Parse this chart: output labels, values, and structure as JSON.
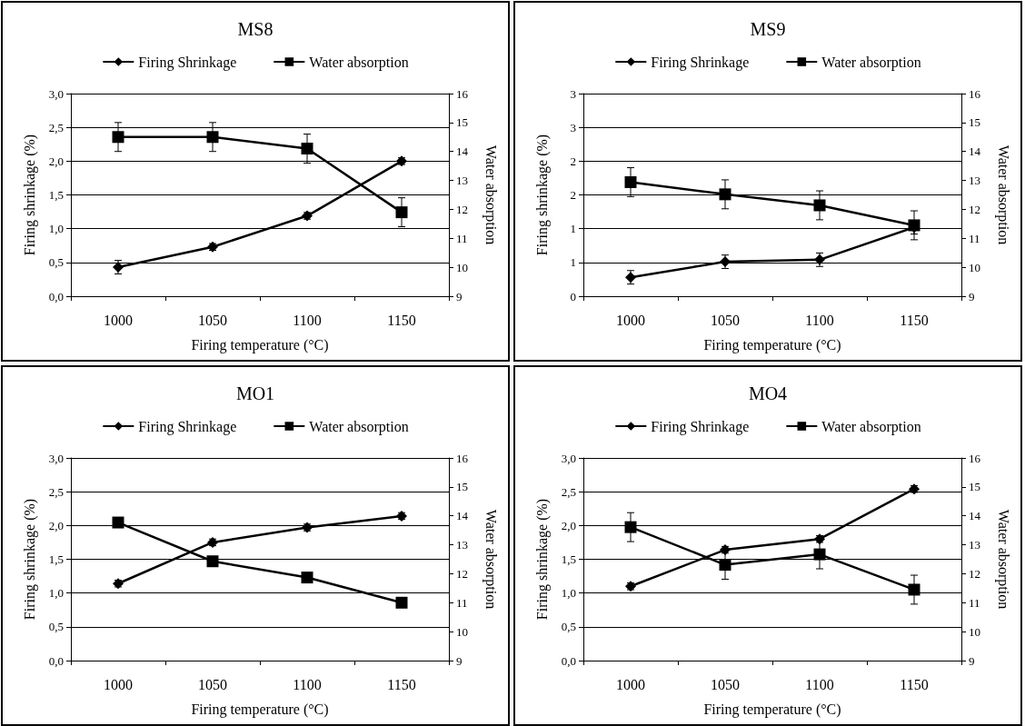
{
  "chart_data": [
    {
      "type": "line",
      "title": "MS8",
      "xlabel": "Firing temperature (°C)",
      "ylabel": "Firing shrinkage (%)",
      "y2label": "Water absorption",
      "categories": [
        "1000",
        "1050",
        "1100",
        "1150"
      ],
      "ylim": [
        0,
        3
      ],
      "yticks": [
        {
          "value": 0,
          "label": "0,0"
        },
        {
          "value": 0.5,
          "label": "0,5"
        },
        {
          "value": 1,
          "label": "1,0"
        },
        {
          "value": 1.5,
          "label": "1,5"
        },
        {
          "value": 2,
          "label": "2,0"
        },
        {
          "value": 2.5,
          "label": "2,5"
        },
        {
          "value": 3,
          "label": "3,0"
        }
      ],
      "y2lim": [
        9,
        16
      ],
      "y2ticks": [
        9,
        10,
        11,
        12,
        13,
        14,
        15,
        16
      ],
      "grid": "y",
      "legend": "top",
      "series": [
        {
          "name": "Firing Shrinkage",
          "color": "#000000",
          "marker": "diamond",
          "values": [
            0.43,
            0.73,
            1.19,
            2.0
          ],
          "errors": [
            0.1,
            0.05,
            0.05,
            0.05
          ]
        },
        {
          "name": "Water absorption",
          "color": "#000000",
          "marker": "square",
          "axis": "y2",
          "values": [
            14.5,
            14.5,
            14.1,
            11.9
          ],
          "errors": [
            0.5,
            0.5,
            0.5,
            0.5
          ]
        }
      ]
    },
    {
      "type": "line",
      "title": "MS9",
      "xlabel": "Firing temperature (°C)",
      "ylabel": "Firing shrinkage (%)",
      "y2label": "Water absorption",
      "categories": [
        "1000",
        "1050",
        "1100",
        "1150"
      ],
      "ylim": [
        0,
        3
      ],
      "yticks": [
        {
          "value": 0,
          "label": "0"
        },
        {
          "value": 0.5,
          "label": "1"
        },
        {
          "value": 1,
          "label": "1"
        },
        {
          "value": 1.5,
          "label": "2"
        },
        {
          "value": 2,
          "label": "2"
        },
        {
          "value": 2.5,
          "label": "3"
        },
        {
          "value": 3,
          "label": "3"
        }
      ],
      "y2lim": [
        9,
        16
      ],
      "y2ticks": [
        9,
        10,
        11,
        12,
        13,
        14,
        15,
        16
      ],
      "grid": "y",
      "legend": "top",
      "series": [
        {
          "name": "Firing Shrinkage",
          "color": "#000000",
          "marker": "diamond",
          "values": [
            0.28,
            0.51,
            0.54,
            1.02
          ],
          "errors": [
            0.1,
            0.1,
            0.1,
            0.1
          ]
        },
        {
          "name": "Water absorption",
          "color": "#000000",
          "marker": "square",
          "axis": "y2",
          "values": [
            12.94,
            12.52,
            12.14,
            11.45
          ],
          "errors": [
            0.5,
            0.5,
            0.5,
            0.5
          ]
        }
      ]
    },
    {
      "type": "line",
      "title": "MO1",
      "xlabel": "Firing temperature (°C)",
      "ylabel": "Firing shrinkage (%)",
      "y2label": "Water absorption",
      "categories": [
        "1000",
        "1050",
        "1100",
        "1150"
      ],
      "ylim": [
        0,
        3
      ],
      "yticks": [
        {
          "value": 0,
          "label": "0,0"
        },
        {
          "value": 0.5,
          "label": "0,5"
        },
        {
          "value": 1,
          "label": "1,0"
        },
        {
          "value": 1.5,
          "label": "1,5"
        },
        {
          "value": 2,
          "label": "2,0"
        },
        {
          "value": 2.5,
          "label": "2,5"
        },
        {
          "value": 3,
          "label": "3,0"
        }
      ],
      "y2lim": [
        9,
        16
      ],
      "y2ticks": [
        9,
        10,
        11,
        12,
        13,
        14,
        15,
        16
      ],
      "grid": "y",
      "legend": "top",
      "series": [
        {
          "name": "Firing Shrinkage",
          "color": "#000000",
          "marker": "diamond",
          "values": [
            1.14,
            1.75,
            1.97,
            2.14
          ],
          "errors": [
            0.05,
            0.05,
            0.05,
            0.05
          ]
        },
        {
          "name": "Water absorption",
          "color": "#000000",
          "marker": "square",
          "axis": "y2",
          "values": [
            13.77,
            12.43,
            11.87,
            11.0
          ]
        }
      ]
    },
    {
      "type": "line",
      "title": "MO4",
      "xlabel": "Firing temperature (°C)",
      "ylabel": "Firing shrinkage (%)",
      "y2label": "Water absorption",
      "categories": [
        "1000",
        "1050",
        "1100",
        "1150"
      ],
      "ylim": [
        0,
        3
      ],
      "yticks": [
        {
          "value": 0,
          "label": "0,0"
        },
        {
          "value": 0.5,
          "label": "0,5"
        },
        {
          "value": 1,
          "label": "1,0"
        },
        {
          "value": 1.5,
          "label": "1,5"
        },
        {
          "value": 2,
          "label": "2,0"
        },
        {
          "value": 2.5,
          "label": "2,5"
        },
        {
          "value": 3,
          "label": "3,0"
        }
      ],
      "y2lim": [
        9,
        16
      ],
      "y2ticks": [
        9,
        10,
        11,
        12,
        13,
        14,
        15,
        16
      ],
      "grid": "y",
      "legend": "top",
      "series": [
        {
          "name": "Firing Shrinkage",
          "color": "#000000",
          "marker": "diamond",
          "values": [
            1.1,
            1.64,
            1.8,
            2.54
          ],
          "errors": [
            0.05,
            0.05,
            0.05,
            0.05
          ]
        },
        {
          "name": "Water absorption",
          "color": "#000000",
          "marker": "square",
          "axis": "y2",
          "values": [
            13.61,
            12.31,
            12.67,
            11.45
          ],
          "errors": [
            0.5,
            0.5,
            0.5,
            0.5
          ]
        }
      ]
    }
  ]
}
